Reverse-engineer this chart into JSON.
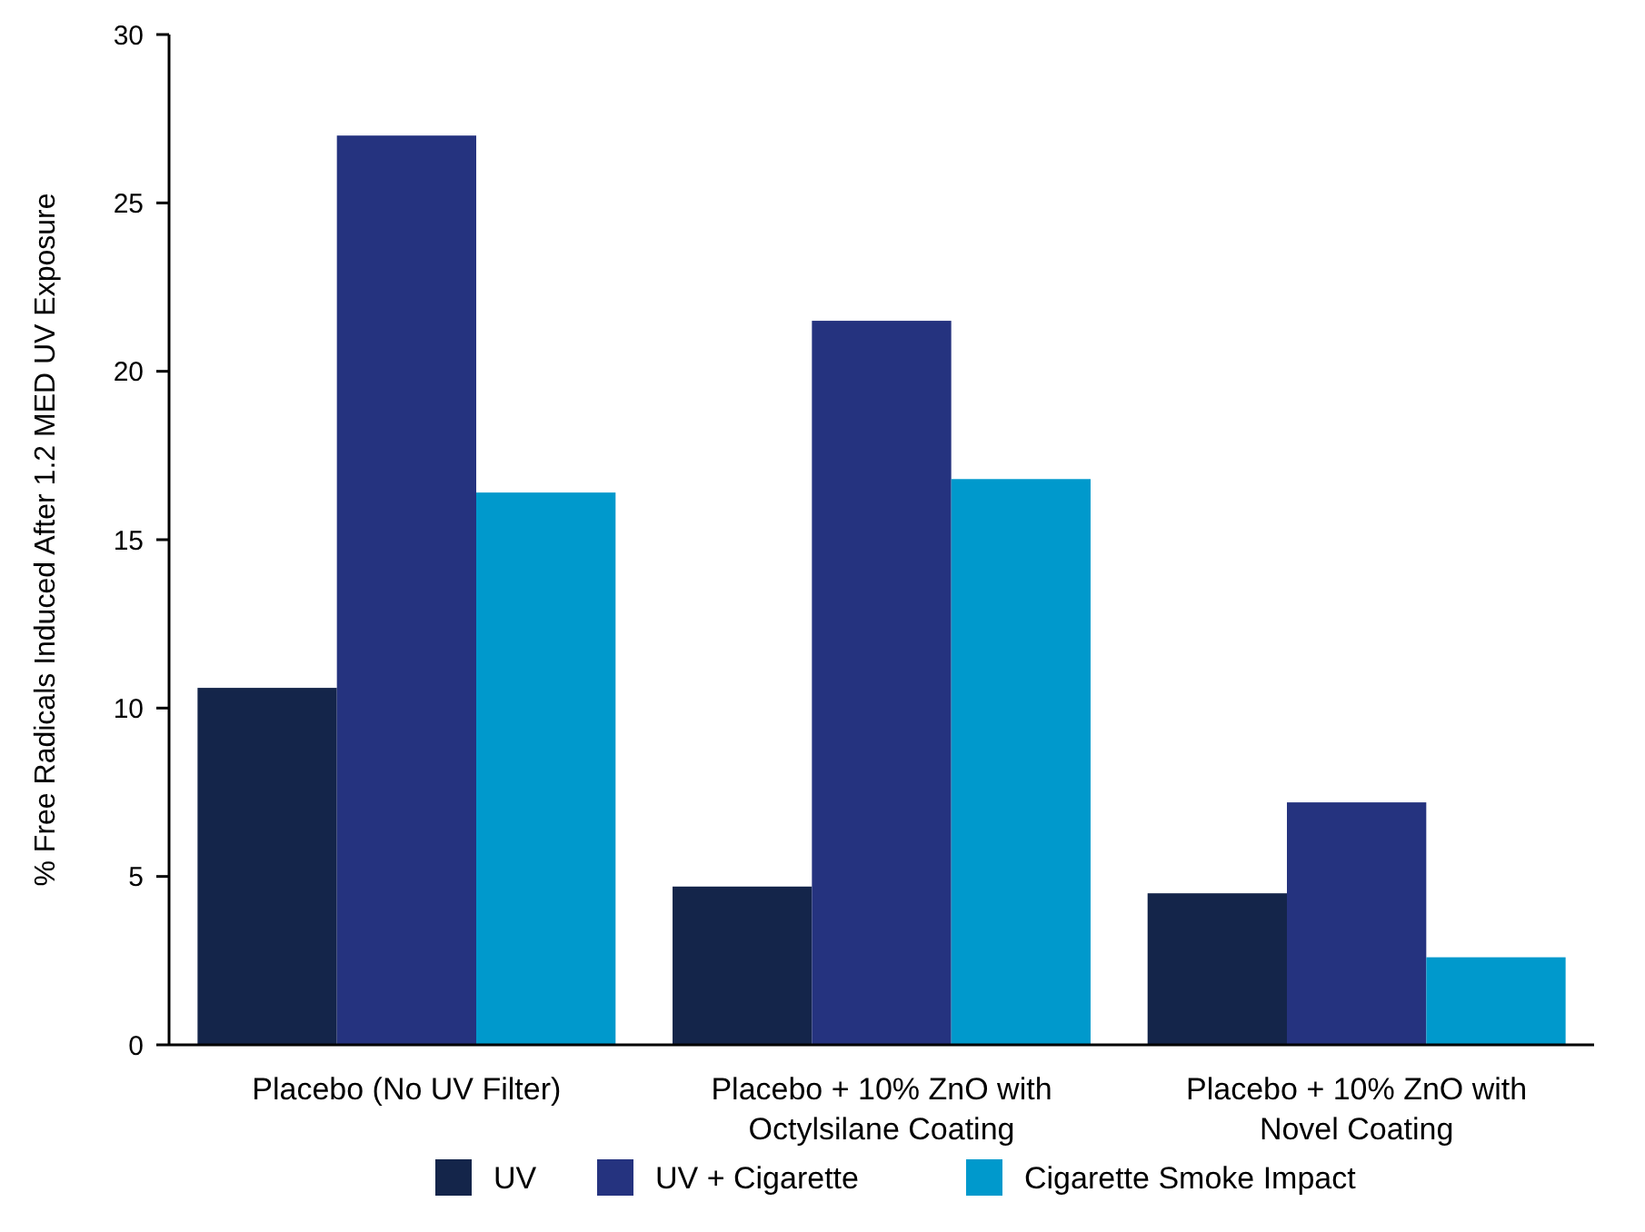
{
  "chart_data": {
    "type": "bar",
    "ylabel": "% Free Radicals Induced After 1.2 MED UV Exposure",
    "categories": [
      "Placebo (No UV Filter)",
      "Placebo + 10% ZnO with Octylsilane Coating",
      "Placebo + 10% ZnO with Novel Coating"
    ],
    "series": [
      {
        "name": "UV",
        "color": "#14254a",
        "values": [
          10.6,
          4.7,
          4.5
        ]
      },
      {
        "name": "UV + Cigarette",
        "color": "#25337f",
        "values": [
          27.0,
          21.5,
          7.2
        ]
      },
      {
        "name": "Cigarette Smoke Impact",
        "color": "#0099cc",
        "values": [
          16.4,
          16.8,
          2.6
        ]
      }
    ],
    "ylim": [
      0,
      30
    ],
    "yticks": [
      0,
      5,
      10,
      15,
      20,
      25,
      30
    ],
    "grid": false,
    "legend": "bottom"
  }
}
